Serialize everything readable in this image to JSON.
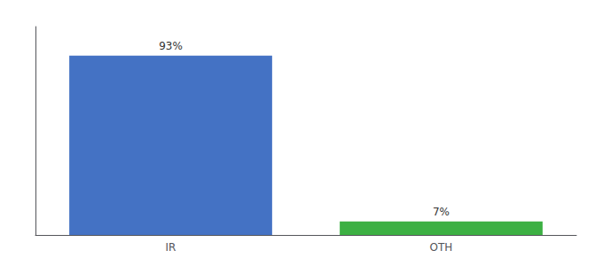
{
  "chart_data": {
    "type": "bar",
    "categories": [
      "IR",
      "OTH"
    ],
    "values": [
      93,
      7
    ],
    "value_labels": [
      "93%",
      "7%"
    ],
    "colors": [
      "#4472c4",
      "#3cb043"
    ],
    "ylim": [
      0,
      108
    ],
    "grid": false,
    "data_labels": true,
    "tick_labels": "x"
  }
}
